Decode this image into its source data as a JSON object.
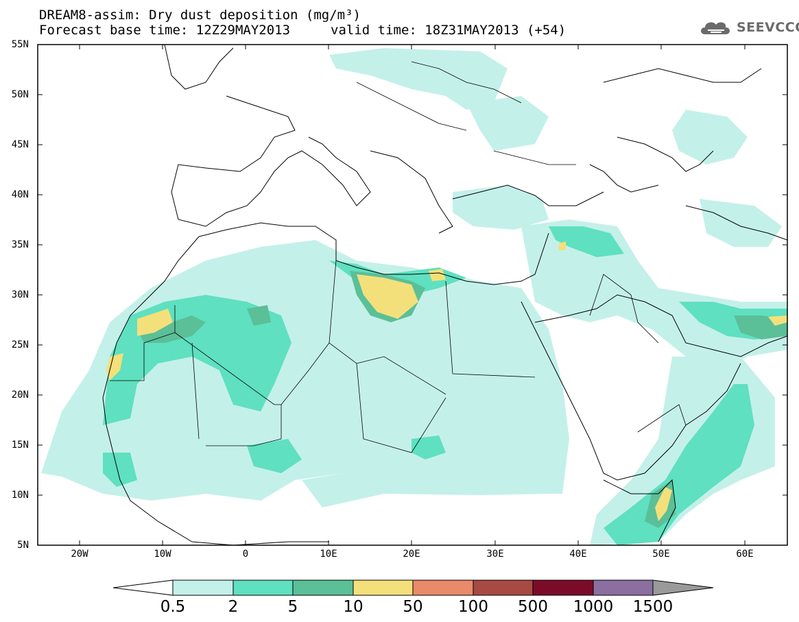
{
  "title": {
    "line1": "DREAM8-assim: Dry dust deposition (mg/m³)",
    "line2": "Forecast base time: 12Z29MAY2013",
    "valid": "valid time: 18Z31MAY2013 (+54)"
  },
  "logo": {
    "text": "SEEVCCC",
    "icon": "cloud-icon"
  },
  "axes": {
    "lat_labels": [
      "55N",
      "50N",
      "45N",
      "40N",
      "35N",
      "30N",
      "25N",
      "20N",
      "15N",
      "10N",
      "5N"
    ],
    "lon_labels": [
      "20W",
      "10W",
      "0",
      "10E",
      "20E",
      "30E",
      "40E",
      "50E",
      "60E"
    ]
  },
  "colorbar": {
    "labels": [
      "0.5",
      "2",
      "5",
      "10",
      "50",
      "100",
      "500",
      "1000",
      "1500"
    ],
    "colors": [
      "#c4f0ea",
      "#5fe0c0",
      "#5bbf98",
      "#f4e07a",
      "#e98a6a",
      "#a84a44",
      "#7a0c2a",
      "#8a6fa0",
      "#9a9a9a"
    ]
  },
  "colors": {
    "tint1": "#c4f0ea",
    "tint2": "#5fe0c0",
    "tint3": "#5bbf98",
    "tint4": "#f4e07a"
  }
}
